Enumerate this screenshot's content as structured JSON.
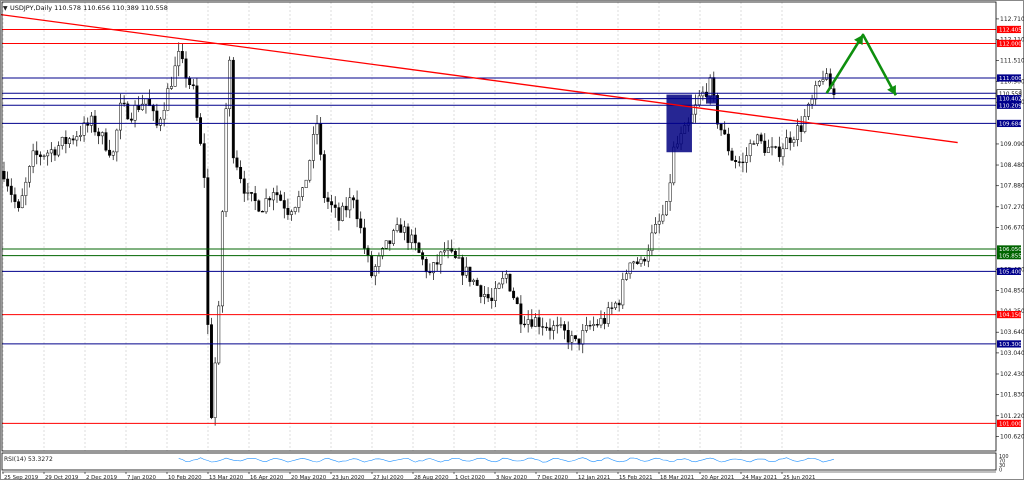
{
  "header": {
    "symbol_info": "USDJPY,Daily  110.578 110.656 110.389 110.558",
    "menu_arrow": "▼"
  },
  "colors": {
    "background": "#ffffff",
    "frame": "#000000",
    "grid": "#c8c8c8",
    "candle": "#000000",
    "red_line": "#ff0000",
    "blue_line": "#00008b",
    "green_line": "#006400",
    "arrow": "#0e8f0e",
    "zone": "#000080"
  },
  "indicator": {
    "label": "RSI(14) 53.3272",
    "scale": [
      "100",
      "70",
      "30",
      "0"
    ]
  },
  "chart_data": {
    "type": "candlestick",
    "instrument": "USDJPY",
    "timeframe": "Daily",
    "last_ohlc": {
      "open": 110.578,
      "high": 110.656,
      "low": 110.389,
      "close": 110.558
    },
    "ylim": [
      100.2,
      113.2
    ],
    "price_ticks": [
      "112.710",
      "112.110",
      "111.510",
      "110.900",
      "110.300",
      "109.090",
      "108.480",
      "107.880",
      "107.270",
      "106.670",
      "105.460",
      "104.850",
      "104.250",
      "103.640",
      "103.040",
      "102.430",
      "101.830",
      "101.220",
      "100.620"
    ],
    "date_ticks": [
      "25 Sep 2019",
      "29 Oct 2019",
      "2 Dec 2019",
      "7 Jan 2020",
      "10 Feb 2020",
      "13 Mar 2020",
      "16 Apr 2020",
      "20 May 2020",
      "23 Jun 2020",
      "27 Jul 2020",
      "28 Aug 2020",
      "1 Oct 2020",
      "3 Nov 2020",
      "7 Dec 2020",
      "12 Jan 2021",
      "15 Feb 2021",
      "18 Mar 2021",
      "20 Apr 2021",
      "24 May 2021",
      "25 Jun 2021"
    ],
    "price_path": [
      [
        0,
        108.3
      ],
      [
        4,
        107.1
      ],
      [
        8,
        108.7
      ],
      [
        13,
        108.9
      ],
      [
        19,
        109.3
      ],
      [
        24,
        109.7
      ],
      [
        30,
        108.8
      ],
      [
        32,
        110.1
      ],
      [
        35,
        110.0
      ],
      [
        39,
        110.4
      ],
      [
        42,
        109.6
      ],
      [
        48,
        111.6
      ],
      [
        52,
        110.6
      ],
      [
        55,
        108.2
      ],
      [
        56,
        103.8
      ],
      [
        57,
        101.3
      ],
      [
        59,
        104.2
      ],
      [
        61,
        110.1
      ],
      [
        62,
        111.4
      ],
      [
        63,
        108.9
      ],
      [
        67,
        107.5
      ],
      [
        71,
        107.3
      ],
      [
        74,
        107.8
      ],
      [
        78,
        107.2
      ],
      [
        82,
        107.6
      ],
      [
        86,
        109.7
      ],
      [
        88,
        107.6
      ],
      [
        92,
        106.9
      ],
      [
        96,
        107.6
      ],
      [
        99,
        106.1
      ],
      [
        101,
        105.3
      ],
      [
        105,
        106.1
      ],
      [
        109,
        106.7
      ],
      [
        113,
        106.1
      ],
      [
        117,
        105.3
      ],
      [
        121,
        106.0
      ],
      [
        125,
        105.6
      ],
      [
        130,
        105.0
      ],
      [
        134,
        104.5
      ],
      [
        138,
        105.3
      ],
      [
        142,
        104.1
      ],
      [
        146,
        104.0
      ],
      [
        150,
        103.8
      ],
      [
        154,
        103.6
      ],
      [
        157,
        103.3
      ],
      [
        161,
        103.8
      ],
      [
        165,
        104.0
      ],
      [
        169,
        104.6
      ],
      [
        172,
        105.8
      ],
      [
        175,
        105.6
      ],
      [
        178,
        106.4
      ],
      [
        182,
        107.2
      ],
      [
        184,
        108.9
      ],
      [
        188,
        109.6
      ],
      [
        191,
        110.4
      ],
      [
        194,
        110.8
      ],
      [
        196,
        109.8
      ],
      [
        200,
        108.7
      ],
      [
        203,
        108.5
      ],
      [
        206,
        109.3
      ],
      [
        209,
        109.0
      ],
      [
        212,
        108.8
      ],
      [
        216,
        109.3
      ],
      [
        219,
        109.6
      ],
      [
        222,
        110.3
      ],
      [
        225,
        111.1
      ],
      [
        228,
        110.5
      ]
    ],
    "horizontal_levels": [
      {
        "price": 112.405,
        "label": "112.405",
        "color": "red"
      },
      {
        "price": 112.0,
        "label": "112.000",
        "color": "red"
      },
      {
        "price": 111.0,
        "label": "111.000",
        "color": "blue"
      },
      {
        "price": 110.558,
        "label": "110.558",
        "color": "blue",
        "current": true
      },
      {
        "price": 110.402,
        "label": "110.402",
        "color": "blue"
      },
      {
        "price": 110.209,
        "label": "110.209",
        "color": "blue"
      },
      {
        "price": 109.684,
        "label": "109.684",
        "color": "blue"
      },
      {
        "price": 106.05,
        "label": "106.050",
        "color": "green"
      },
      {
        "price": 105.855,
        "label": "105.855",
        "color": "green"
      },
      {
        "price": 105.4,
        "label": "105.400",
        "color": "blue"
      },
      {
        "price": 104.15,
        "label": "104.150",
        "color": "red"
      },
      {
        "price": 103.3,
        "label": "103.300",
        "color": "blue"
      },
      {
        "price": 101.0,
        "label": "101.000",
        "color": "red"
      }
    ],
    "trendline": {
      "from": [
        -2,
        112.85
      ],
      "to": [
        262,
        109.13
      ],
      "color": "red"
    },
    "zones": [
      {
        "x0": 182,
        "x1": 189,
        "y0": 108.85,
        "y1": 110.52
      },
      {
        "x0": 193,
        "x1": 196,
        "y0": 110.26,
        "y1": 110.5
      }
    ],
    "projection_arrow": [
      [
        226,
        110.56
      ],
      [
        236,
        112.25
      ],
      [
        245,
        110.5
      ]
    ],
    "rsi_value": 53.3272
  }
}
